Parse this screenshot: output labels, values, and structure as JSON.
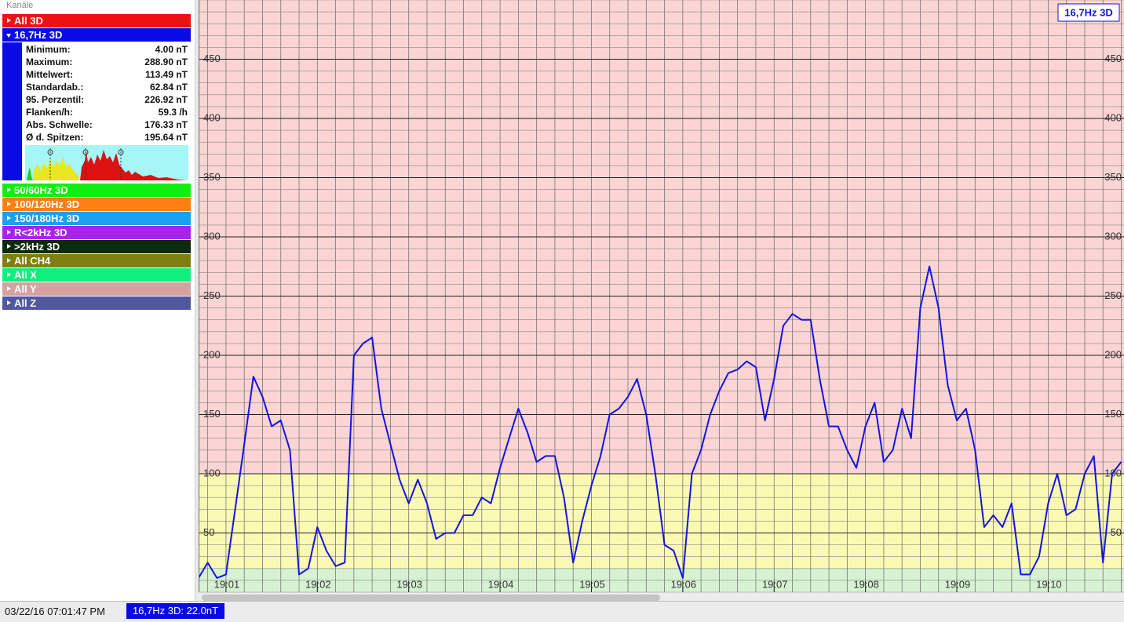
{
  "sidebar": {
    "title": "Kanäle",
    "channels": [
      {
        "label": "All 3D",
        "color": "#ee1111"
      },
      {
        "label": "16,7Hz 3D",
        "color": "#0a0ae6",
        "expanded": true
      },
      {
        "label": "50/60Hz 3D",
        "color": "#11ee11"
      },
      {
        "label": "100/120Hz 3D",
        "color": "#ff7f10"
      },
      {
        "label": "150/180Hz 3D",
        "color": "#1aa0ee"
      },
      {
        "label": "R<2kHz 3D",
        "color": "#aa22ee"
      },
      {
        "label": ">2kHz 3D",
        "color": "#0c2a0c"
      },
      {
        "label": "All CH4",
        "color": "#7f7f10"
      },
      {
        "label": "All X",
        "color": "#10ee80"
      },
      {
        "label": "All Y",
        "color": "#d8a0a0"
      },
      {
        "label": "All Z",
        "color": "#5058a0"
      }
    ],
    "stats": [
      {
        "label": "Minimum:",
        "value": "4.00 nT"
      },
      {
        "label": "Maximum:",
        "value": "288.90 nT"
      },
      {
        "label": "Mittelwert:",
        "value": "113.49 nT"
      },
      {
        "label": "Standardab.:",
        "value": "62.84 nT"
      },
      {
        "label": "95. Perzentil:",
        "value": "226.92 nT"
      },
      {
        "label": "Flanken/h:",
        "value": "59.3 /h"
      },
      {
        "label": "Abs. Schwelle:",
        "value": "176.33 nT"
      },
      {
        "label": "Ø d. Spitzen:",
        "value": "195.64 nT"
      }
    ]
  },
  "chart_data": {
    "type": "line",
    "x": [
      0.7,
      0.8,
      0.9,
      1.0,
      1.1,
      1.2,
      1.3,
      1.4,
      1.5,
      1.6,
      1.7,
      1.8,
      1.9,
      2.0,
      2.1,
      2.2,
      2.3,
      2.4,
      2.5,
      2.6,
      2.7,
      2.8,
      2.9,
      3.0,
      3.1,
      3.2,
      3.3,
      3.4,
      3.5,
      3.6,
      3.7,
      3.8,
      3.9,
      4.0,
      4.1,
      4.2,
      4.3,
      4.4,
      4.5,
      4.6,
      4.7,
      4.8,
      4.9,
      5.0,
      5.1,
      5.2,
      5.3,
      5.4,
      5.5,
      5.6,
      5.7,
      5.8,
      5.9,
      6.0,
      6.1,
      6.2,
      6.3,
      6.4,
      6.5,
      6.6,
      6.7,
      6.8,
      6.9,
      7.0,
      7.1,
      7.2,
      7.3,
      7.4,
      7.5,
      7.6,
      7.7,
      7.8,
      7.9,
      8.0,
      8.1,
      8.2,
      8.3,
      8.4,
      8.5,
      8.6,
      8.7,
      8.8,
      8.9,
      9.0,
      9.1,
      9.2,
      9.3,
      9.4,
      9.5,
      9.6,
      9.7,
      9.8,
      9.9,
      10.0,
      10.1,
      10.2,
      10.3,
      10.4,
      10.5,
      10.6,
      10.7,
      10.8
    ],
    "series": [
      {
        "name": "16,7Hz 3D",
        "color": "#1414dc",
        "values": [
          12,
          25,
          12,
          15,
          70,
          125,
          182,
          165,
          140,
          145,
          120,
          15,
          20,
          55,
          35,
          22,
          25,
          200,
          210,
          215,
          155,
          125,
          95,
          75,
          95,
          75,
          45,
          50,
          50,
          65,
          65,
          80,
          75,
          105,
          130,
          155,
          135,
          110,
          115,
          115,
          80,
          25,
          60,
          90,
          115,
          150,
          155,
          165,
          180,
          150,
          100,
          40,
          35,
          12,
          100,
          120,
          150,
          170,
          185,
          188,
          195,
          190,
          145,
          180,
          225,
          235,
          230,
          230,
          180,
          140,
          140,
          120,
          105,
          140,
          160,
          110,
          120,
          155,
          130,
          240,
          275,
          240,
          175,
          145,
          155,
          120,
          55,
          65,
          55,
          75,
          15,
          15,
          30,
          75,
          100,
          65,
          70,
          100,
          115,
          25,
          100,
          110
        ]
      }
    ],
    "xlim": [
      0.7,
      10.83
    ],
    "xticks": [
      {
        "value": 1,
        "label": "19:01"
      },
      {
        "value": 2,
        "label": "19:02"
      },
      {
        "value": 3,
        "label": "19:03"
      },
      {
        "value": 4,
        "label": "19:04"
      },
      {
        "value": 5,
        "label": "19:05"
      },
      {
        "value": 6,
        "label": "19:06"
      },
      {
        "value": 7,
        "label": "19:07"
      },
      {
        "value": 8,
        "label": "19:08"
      },
      {
        "value": 9,
        "label": "19:09"
      },
      {
        "value": 10,
        "label": "19:10"
      }
    ],
    "ylim": [
      0,
      500
    ],
    "yticks": [
      50,
      100,
      150,
      200,
      250,
      300,
      350,
      400,
      450
    ],
    "grid": true,
    "ygrid_minor_step": 10,
    "xgrid_step": 0.2,
    "bands": [
      {
        "from": 0,
        "to": 20,
        "color": "#d6f2d2"
      },
      {
        "from": 20,
        "to": 100,
        "color": "#fbfab2"
      },
      {
        "from": 100,
        "to": 500,
        "color": "#fbd4d4"
      }
    ],
    "legend": "upper right"
  },
  "status": {
    "time": "03/22/16 07:01:47 PM",
    "reading": "16,7Hz 3D: 22.0nT"
  }
}
